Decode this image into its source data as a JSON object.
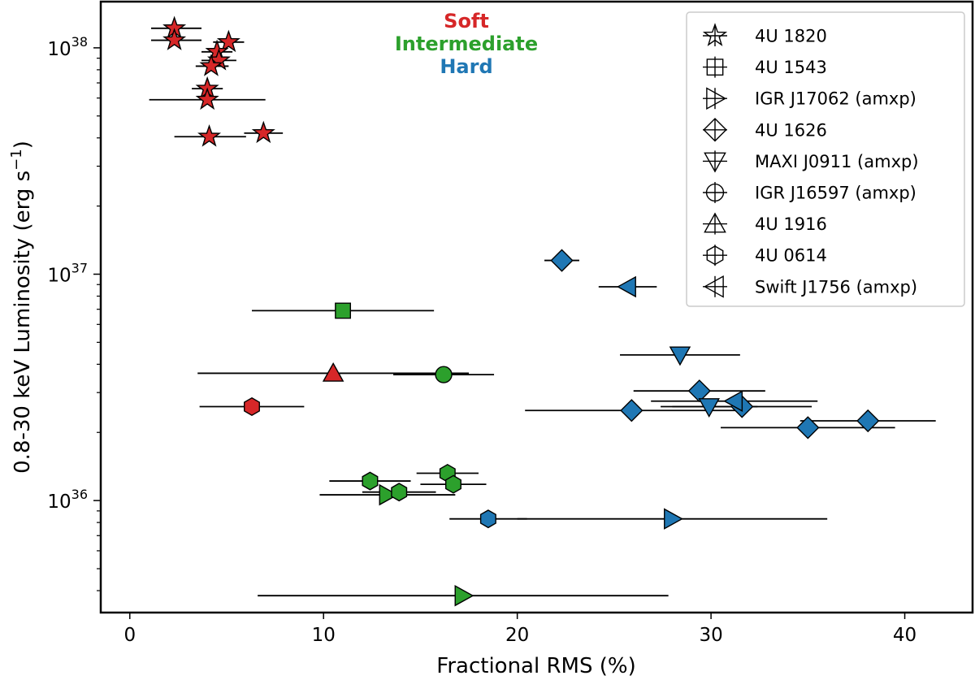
{
  "chart_data": {
    "type": "scatter",
    "xlabel": "Fractional RMS (%)",
    "ylabel": "0.8-30 keV Luminosity (erg s",
    "ylabel_sup": "−1",
    "ylabel_close": ")",
    "xlim": [
      -1.5,
      43.5
    ],
    "ylim": [
      3.2e+35,
      1.6e+38
    ],
    "yscale": "log",
    "x_ticks": [
      0,
      10,
      20,
      30,
      40
    ],
    "x_tick_labels": [
      "0",
      "10",
      "20",
      "30",
      "40"
    ],
    "y_major_ticks": [
      {
        "value": 1e+36,
        "base": "10",
        "exp": "36"
      },
      {
        "value": 1e+37,
        "base": "10",
        "exp": "37"
      },
      {
        "value": 1e+38,
        "base": "10",
        "exp": "38"
      }
    ],
    "y_minor_ticks": [
      4e+35,
      5e+35,
      6e+35,
      7e+35,
      8e+35,
      9e+35,
      2e+36,
      3e+36,
      4e+36,
      5e+36,
      6e+36,
      7e+36,
      8e+36,
      9e+36,
      2e+37,
      3e+37,
      4e+37,
      5e+37,
      6e+37,
      7e+37,
      8e+37,
      9e+37
    ],
    "grid": false,
    "legend_position": "top-right",
    "state_labels": [
      {
        "text": "Soft",
        "color": "#d62728"
      },
      {
        "text": "Intermediate",
        "color": "#2ca02c"
      },
      {
        "text": "Hard",
        "color": "#1f77b4"
      }
    ],
    "state_colors": {
      "soft": "#d62728",
      "intermediate": "#2ca02c",
      "hard": "#1f77b4"
    },
    "series": [
      {
        "name": "4U 1820",
        "marker": "star",
        "points": [
          {
            "x": 2.3,
            "xerr": [
              1.2,
              1.4
            ],
            "y": 1.22e+38,
            "state": "soft"
          },
          {
            "x": 2.3,
            "xerr": [
              1.2,
              1.4
            ],
            "y": 1.08e+38,
            "state": "soft"
          },
          {
            "x": 5.1,
            "xerr": [
              0.8,
              0.8
            ],
            "y": 1.06e+38,
            "state": "soft"
          },
          {
            "x": 4.5,
            "xerr": [
              0.8,
              0.8
            ],
            "y": 9.6e+37,
            "state": "soft"
          },
          {
            "x": 4.6,
            "xerr": [
              0.9,
              0.9
            ],
            "y": 8.8e+37,
            "state": "soft"
          },
          {
            "x": 4.2,
            "xerr": [
              0.8,
              0.9
            ],
            "y": 8.3e+37,
            "state": "soft"
          },
          {
            "x": 4.0,
            "xerr": [
              0.8,
              0.8
            ],
            "y": 6.6e+37,
            "state": "soft"
          },
          {
            "x": 4.0,
            "xerr": [
              3.0,
              3.0
            ],
            "y": 5.9e+37,
            "state": "soft"
          },
          {
            "x": 4.1,
            "xerr": [
              1.8,
              1.9
            ],
            "y": 4.05e+37,
            "state": "soft"
          },
          {
            "x": 6.9,
            "xerr": [
              1.0,
              1.0
            ],
            "y": 4.2e+37,
            "state": "soft"
          }
        ]
      },
      {
        "name": "4U 1543",
        "marker": "square",
        "points": [
          {
            "x": 11.0,
            "xerr": [
              4.7,
              4.7
            ],
            "y": 6.9e+36,
            "state": "intermediate"
          }
        ]
      },
      {
        "name": "IGR J17062 (amxp)",
        "marker": "triangle-right",
        "points": [
          {
            "x": 13.3,
            "xerr": [
              3.5,
              3.5
            ],
            "y": 1.06e+36,
            "state": "intermediate"
          },
          {
            "x": 17.2,
            "xerr": [
              10.6,
              10.6
            ],
            "y": 3.8e+35,
            "state": "intermediate"
          },
          {
            "x": 28.0,
            "xerr": [
              8.0,
              8.0
            ],
            "y": 8.3e+35,
            "state": "hard"
          }
        ]
      },
      {
        "name": "4U 1626",
        "marker": "diamond",
        "points": [
          {
            "x": 22.3,
            "xerr": [
              0.9,
              0.9
            ],
            "y": 1.15e+37,
            "state": "hard"
          },
          {
            "x": 29.4,
            "xerr": [
              3.4,
              3.4
            ],
            "y": 3.05e+36,
            "state": "hard"
          },
          {
            "x": 25.9,
            "xerr": [
              5.5,
              5.5
            ],
            "y": 2.5e+36,
            "state": "hard"
          },
          {
            "x": 31.6,
            "xerr": [
              3.6,
              3.6
            ],
            "y": 2.6e+36,
            "state": "hard"
          },
          {
            "x": 35.0,
            "xerr": [
              4.5,
              4.5
            ],
            "y": 2.1e+36,
            "state": "hard"
          },
          {
            "x": 38.1,
            "xerr": [
              3.5,
              3.5
            ],
            "y": 2.25e+36,
            "state": "hard"
          }
        ]
      },
      {
        "name": "MAXI J0911 (amxp)",
        "marker": "triangle-down",
        "points": [
          {
            "x": 28.4,
            "xerr": [
              3.1,
              3.1
            ],
            "y": 4.4e+36,
            "state": "hard"
          },
          {
            "x": 29.9,
            "xerr": [
              2.5,
              2.5
            ],
            "y": 2.6e+36,
            "state": "hard"
          }
        ]
      },
      {
        "name": "IGR J16597 (amxp)",
        "marker": "circle",
        "points": [
          {
            "x": 16.2,
            "xerr": [
              2.6,
              2.6
            ],
            "y": 3.6e+36,
            "state": "intermediate"
          }
        ]
      },
      {
        "name": "4U 1916",
        "marker": "triangle-up",
        "points": [
          {
            "x": 10.5,
            "xerr": [
              7.0,
              7.0
            ],
            "y": 3.65e+36,
            "state": "soft"
          }
        ]
      },
      {
        "name": "4U 0614",
        "marker": "hexagon",
        "points": [
          {
            "x": 6.3,
            "xerr": [
              2.7,
              2.7
            ],
            "y": 2.6e+36,
            "state": "soft"
          },
          {
            "x": 12.4,
            "xerr": [
              2.1,
              2.1
            ],
            "y": 1.22e+36,
            "state": "intermediate"
          },
          {
            "x": 13.9,
            "xerr": [
              1.9,
              1.9
            ],
            "y": 1.09e+36,
            "state": "intermediate"
          },
          {
            "x": 16.4,
            "xerr": [
              1.6,
              1.6
            ],
            "y": 1.32e+36,
            "state": "intermediate"
          },
          {
            "x": 16.7,
            "xerr": [
              1.7,
              1.7
            ],
            "y": 1.18e+36,
            "state": "intermediate"
          },
          {
            "x": 18.5,
            "xerr": [
              2.0,
              2.0
            ],
            "y": 8.3e+35,
            "state": "hard"
          }
        ]
      },
      {
        "name": "Swift J1756 (amxp)",
        "marker": "triangle-left",
        "points": [
          {
            "x": 25.7,
            "xerr": [
              1.5,
              1.5
            ],
            "y": 8.8e+36,
            "state": "hard"
          },
          {
            "x": 31.2,
            "xerr": [
              4.3,
              4.3
            ],
            "y": 2.75e+36,
            "state": "hard"
          }
        ]
      }
    ]
  }
}
